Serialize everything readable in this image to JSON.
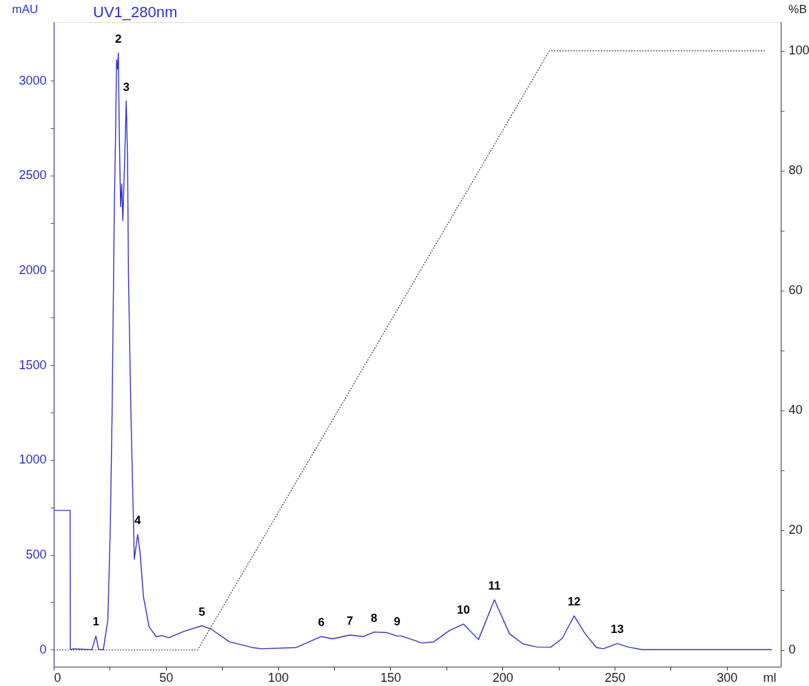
{
  "chart_data": {
    "type": "line",
    "title": "UV1_280nm",
    "xlabel": "ml",
    "ylabel": "mAU",
    "y2label": "%B",
    "xlim": [
      0,
      324
    ],
    "ylim": [
      -90,
      3310
    ],
    "y2lim": [
      -2.8,
      104.8
    ],
    "xticks": [
      0,
      {
        "value": 25,
        "label": null
      },
      50,
      {
        "value": 75,
        "label": null
      },
      100,
      {
        "value": 125,
        "label": null
      },
      150,
      {
        "value": 175,
        "label": null
      },
      200,
      {
        "value": 225,
        "label": null
      },
      250,
      {
        "value": 275,
        "label": null
      },
      300
    ],
    "yticks": [
      0,
      {
        "value": 250,
        "label": null
      },
      500,
      {
        "value": 750,
        "label": null
      },
      1000,
      {
        "value": 1250,
        "label": null
      },
      1500,
      {
        "value": 1750,
        "label": null
      },
      2000,
      {
        "value": 2250,
        "label": null
      },
      2500,
      {
        "value": 2750,
        "label": null
      },
      3000
    ],
    "y2ticks": [
      0,
      {
        "value": 10,
        "label": null
      },
      20,
      {
        "value": 30,
        "label": null
      },
      40,
      {
        "value": 50,
        "label": null
      },
      60,
      {
        "value": 70,
        "label": null
      },
      80,
      {
        "value": 90,
        "label": null
      },
      100
    ],
    "grid": false,
    "series": [
      {
        "color": "#2f2fd0",
        "line_style": "solid",
        "x": [
          0,
          7.3,
          7.4,
          8.8,
          17.0,
          18.8,
          20.0,
          22.1,
          24.1,
          25.2,
          26.0,
          27.0,
          27.5,
          28.0,
          28.4,
          28.8,
          29.2,
          29.8,
          30.3,
          30.8,
          31.6,
          32.3,
          32.9,
          33.3,
          34.4,
          35.9,
          37.4,
          38.4,
          40.0,
          42.5,
          45.6,
          48.2,
          51.2,
          57.9,
          66.0,
          70.2,
          78.3,
          88.6,
          92.6,
          108.0,
          119.2,
          124.3,
          132.0,
          138.1,
          142.7,
          148.4,
          153.0,
          155.0,
          164.2,
          169.3,
          176.5,
          182.6,
          189.3,
          196.4,
          203.1,
          209.2,
          215.3,
          221.5,
          226.6,
          231.9,
          236.8,
          241.9,
          245.0,
          251.1,
          256.2,
          262.4,
          280.7,
          320.0
        ],
        "values": [
          734,
          734,
          0,
          5,
          0,
          72,
          0,
          0,
          156,
          640,
          1246,
          2336,
          2675,
          3110,
          3062,
          3147,
          2724,
          2336,
          2456,
          2263,
          2578,
          2893,
          2590,
          1972,
          1246,
          477,
          607,
          519,
          277,
          120,
          69,
          74,
          63,
          96,
          126,
          108,
          41,
          11,
          5,
          11,
          69,
          57,
          77,
          69,
          93,
          90,
          72,
          72,
          35,
          41,
          102,
          135,
          53,
          263,
          84,
          30,
          14,
          13,
          59,
          178,
          84,
          11,
          5,
          32,
          13,
          0,
          0,
          0
        ]
      },
      {
        "color": "#555555",
        "line_style": "dotted",
        "axis": "y2",
        "x": [
          0,
          64.1,
          220.9,
          317.0
        ],
        "values": [
          0,
          0,
          100,
          100
        ]
      }
    ],
    "annotations": [
      {
        "text": "1",
        "x": 18.8,
        "y": 72
      },
      {
        "text": "2",
        "x": 28.8,
        "y": 3147
      },
      {
        "text": "3",
        "x": 32.3,
        "y": 2893
      },
      {
        "text": "4",
        "x": 37.4,
        "y": 607
      },
      {
        "text": "5",
        "x": 66.0,
        "y": 126
      },
      {
        "text": "6",
        "x": 119.2,
        "y": 69
      },
      {
        "text": "7",
        "x": 132.0,
        "y": 77
      },
      {
        "text": "8",
        "x": 142.7,
        "y": 93
      },
      {
        "text": "9",
        "x": 153.0,
        "y": 72
      },
      {
        "text": "10",
        "x": 182.6,
        "y": 135
      },
      {
        "text": "11",
        "x": 196.4,
        "y": 263
      },
      {
        "text": "12",
        "x": 231.9,
        "y": 178
      },
      {
        "text": "13",
        "x": 251.1,
        "y": 32
      }
    ]
  }
}
